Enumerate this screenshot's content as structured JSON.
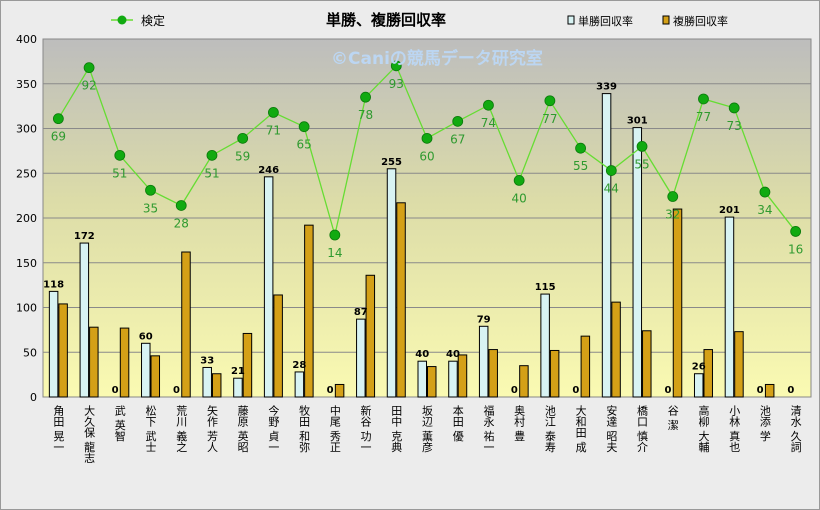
{
  "chart_data": {
    "type": "bar",
    "title": "単勝、複勝回収率",
    "watermark": "©Caniの競馬データ研究室",
    "legend": [
      "検定",
      "単勝回収率",
      "複勝回収率"
    ],
    "ylim": [
      0,
      400
    ],
    "yticks": [
      "0",
      "50",
      "100",
      "150",
      "200",
      "250",
      "300",
      "350",
      "400"
    ],
    "categories": [
      "角田 晃一",
      "大久保 龍志",
      "武 英智",
      "松下 武士",
      "荒川 義之",
      "矢作 芳人",
      "藤原 英昭",
      "今野 貞一",
      "牧田 和弥",
      "中尾 秀正",
      "新谷 功一",
      "田中 克典",
      "坂辺 薫彦",
      "本田 優",
      "福永 祐一",
      "奥村 豊",
      "池江 泰寿",
      "大和田 成",
      "安達 昭夫",
      "橋口 慎介",
      "谷 潔",
      "高柳 大輔",
      "小林 真也",
      "池添 学",
      "清水 久詞"
    ],
    "series": [
      {
        "name": "単勝回収率",
        "values": [
          118,
          172,
          0,
          60,
          0,
          33,
          21,
          246,
          28,
          0,
          87,
          255,
          40,
          40,
          79,
          0,
          115,
          0,
          339,
          301,
          0,
          26,
          201,
          0,
          0
        ],
        "labels": [
          "118",
          "172",
          "0",
          "60",
          "0",
          "33",
          "21",
          "246",
          "28",
          "0",
          "87",
          "255",
          "40",
          "40",
          "79",
          "0",
          "115",
          "0",
          "339",
          "301",
          "0",
          "26",
          "201",
          "0",
          "0"
        ]
      },
      {
        "name": "複勝回収率",
        "values": [
          104,
          78,
          77,
          46,
          162,
          26,
          71,
          114,
          192,
          14,
          136,
          217,
          34,
          47,
          53,
          35,
          52,
          68,
          106,
          74,
          210,
          53,
          73,
          14,
          0
        ]
      },
      {
        "name": "検定",
        "values": [
          311,
          368,
          270,
          231,
          214,
          270,
          289,
          318,
          302,
          181,
          335,
          370,
          289,
          308,
          326,
          242,
          331,
          278,
          253,
          280,
          224,
          333,
          323,
          229,
          185
        ],
        "labels": [
          "69",
          "92",
          "51",
          "35",
          "28",
          "51",
          "59",
          "71",
          "65",
          "14",
          "78",
          "93",
          "60",
          "67",
          "74",
          "40",
          "77",
          "55",
          "44",
          "55",
          "32",
          "77",
          "73",
          "34",
          "16"
        ]
      }
    ],
    "colors": {
      "tan_fill": "#d8f3f3",
      "tan_stroke": "#000000",
      "fuku_fill": "#d4a017",
      "fuku_stroke": "#000000",
      "line": "#66dd33",
      "marker": "#11aa11",
      "point_label": "#2f9a2f"
    }
  }
}
